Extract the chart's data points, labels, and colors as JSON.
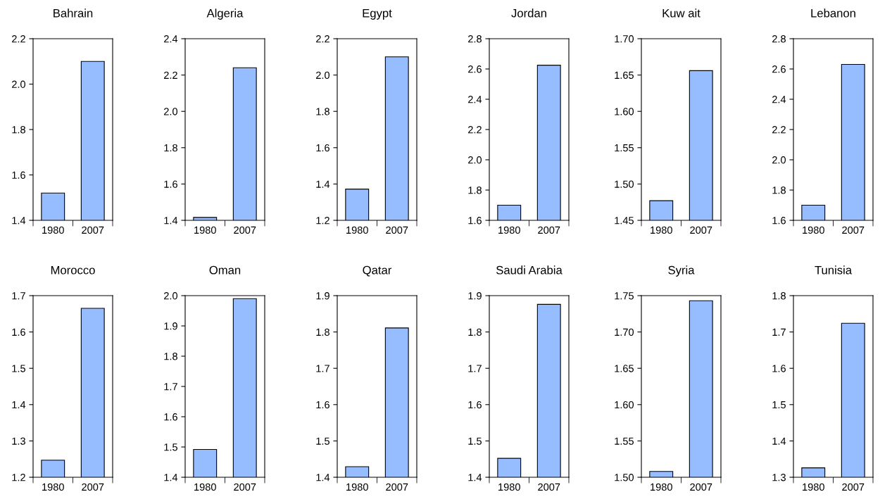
{
  "chart_data": [
    {
      "type": "bar",
      "title": "Bahrain",
      "categories": [
        "1980",
        "2007"
      ],
      "values": [
        1.52,
        2.1
      ],
      "color": "#96bdff",
      "ylim": [
        1.4,
        2.2
      ],
      "yticks": [
        1.4,
        1.6,
        1.8,
        {
          "value": 2,
          "label": "2.0"
        },
        2.2
      ]
    },
    {
      "type": "bar",
      "title": "Algeria",
      "categories": [
        "1980",
        "2007"
      ],
      "values": [
        1.416,
        2.24
      ],
      "color": "#96bdff",
      "ylim": [
        1.4,
        2.4
      ],
      "yticks": [
        1.4,
        1.6,
        1.8,
        {
          "value": 2,
          "label": "2.0"
        },
        2.2,
        2.4
      ]
    },
    {
      "type": "bar",
      "title": "Egypt",
      "categories": [
        "1980",
        "2007"
      ],
      "values": [
        1.372,
        2.1
      ],
      "color": "#96bdff",
      "ylim": [
        1.2,
        2.2
      ],
      "yticks": [
        1.2,
        1.4,
        1.6,
        1.8,
        {
          "value": 2,
          "label": "2.0"
        },
        2.2
      ]
    },
    {
      "type": "bar",
      "title": "Jordan",
      "categories": [
        "1980",
        "2007"
      ],
      "values": [
        1.7,
        2.625
      ],
      "color": "#96bdff",
      "ylim": [
        1.6,
        2.8
      ],
      "yticks": [
        1.6,
        1.8,
        {
          "value": 2,
          "label": "2.0"
        },
        2.2,
        2.4,
        2.6,
        2.8
      ]
    },
    {
      "type": "bar",
      "title": "Kuw ait",
      "categories": [
        "1980",
        "2007"
      ],
      "values": [
        1.477,
        1.656
      ],
      "color": "#96bdff",
      "ylim": [
        1.45,
        1.7
      ],
      "yticks": [
        1.45,
        {
          "value": 1.5,
          "label": "1.50"
        },
        1.55,
        {
          "value": 1.6,
          "label": "1.60"
        },
        1.65,
        {
          "value": 1.7,
          "label": "1.70"
        }
      ]
    },
    {
      "type": "bar",
      "title": "Lebanon",
      "categories": [
        "1980",
        "2007"
      ],
      "values": [
        1.7,
        2.63
      ],
      "color": "#96bdff",
      "ylim": [
        1.6,
        2.8
      ],
      "yticks": [
        1.6,
        1.8,
        {
          "value": 2,
          "label": "2.0"
        },
        2.2,
        2.4,
        2.6,
        2.8
      ]
    },
    {
      "type": "bar",
      "title": "Morocco",
      "categories": [
        "1980",
        "2007"
      ],
      "values": [
        1.247,
        1.665
      ],
      "color": "#96bdff",
      "ylim": [
        1.2,
        1.7
      ],
      "yticks": [
        1.2,
        1.3,
        1.4,
        1.5,
        1.6,
        1.7
      ]
    },
    {
      "type": "bar",
      "title": "Oman",
      "categories": [
        "1980",
        "2007"
      ],
      "values": [
        1.492,
        1.99
      ],
      "color": "#96bdff",
      "ylim": [
        1.4,
        2.0
      ],
      "yticks": [
        1.4,
        1.5,
        1.6,
        1.7,
        1.8,
        1.9,
        {
          "value": 2,
          "label": "2.0"
        }
      ]
    },
    {
      "type": "bar",
      "title": "Qatar",
      "categories": [
        "1980",
        "2007"
      ],
      "values": [
        1.429,
        1.811
      ],
      "color": "#96bdff",
      "ylim": [
        1.4,
        1.9
      ],
      "yticks": [
        1.4,
        1.5,
        1.6,
        1.7,
        1.8,
        1.9
      ]
    },
    {
      "type": "bar",
      "title": "Saudi Arabia",
      "categories": [
        "1980",
        "2007"
      ],
      "values": [
        1.452,
        1.876
      ],
      "color": "#96bdff",
      "ylim": [
        1.4,
        1.9
      ],
      "yticks": [
        1.4,
        1.5,
        1.6,
        1.7,
        1.8,
        1.9
      ]
    },
    {
      "type": "bar",
      "title": "Syria",
      "categories": [
        "1980",
        "2007"
      ],
      "values": [
        1.508,
        1.743
      ],
      "color": "#96bdff",
      "ylim": [
        1.5,
        1.75
      ],
      "yticks": [
        {
          "value": 1.5,
          "label": "1.50"
        },
        1.55,
        {
          "value": 1.6,
          "label": "1.60"
        },
        1.65,
        {
          "value": 1.7,
          "label": "1.70"
        },
        1.75
      ]
    },
    {
      "type": "bar",
      "title": "Tunisia",
      "categories": [
        "1980",
        "2007"
      ],
      "values": [
        1.326,
        1.724
      ],
      "color": "#96bdff",
      "ylim": [
        1.3,
        1.8
      ],
      "yticks": [
        1.3,
        1.4,
        1.5,
        1.6,
        1.7,
        1.8
      ]
    }
  ]
}
